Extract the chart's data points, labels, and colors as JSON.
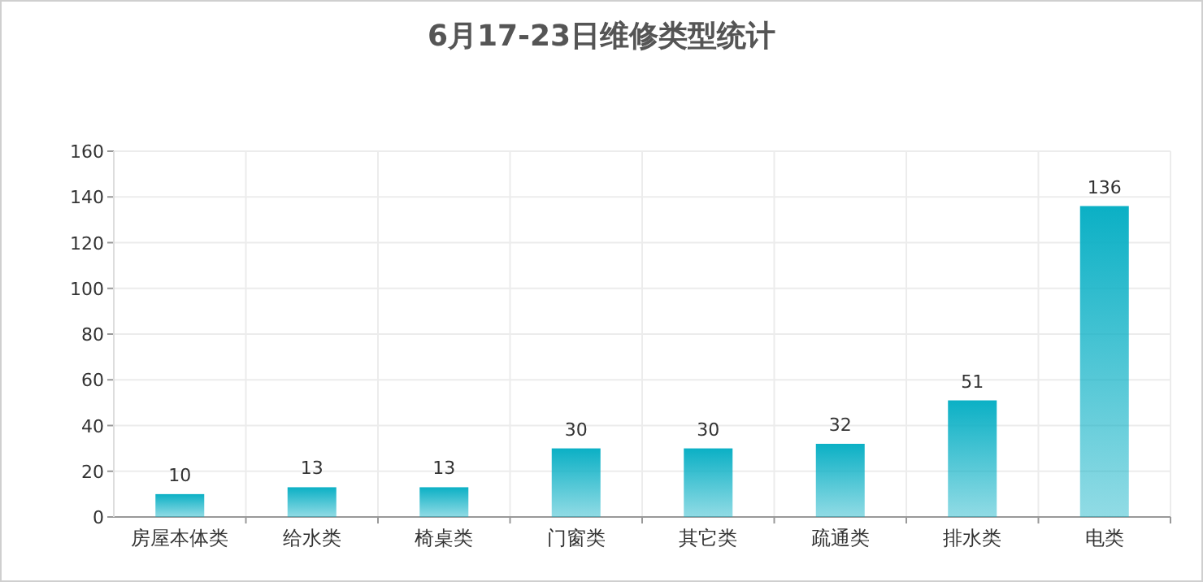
{
  "chart_data": {
    "type": "bar",
    "title": "6月17-23日维修类型统计",
    "categories": [
      "房屋本体类",
      "给水类",
      "椅桌类",
      "门窗类",
      "其它类",
      "疏通类",
      "排水类",
      "电类"
    ],
    "values": [
      10,
      13,
      13,
      30,
      30,
      32,
      51,
      136
    ],
    "color": "#0bb0c5",
    "ylim": [
      0,
      160
    ],
    "yticks": [
      0,
      20,
      40,
      60,
      80,
      100,
      120,
      140,
      160
    ],
    "grid": true,
    "data_labels": true
  }
}
